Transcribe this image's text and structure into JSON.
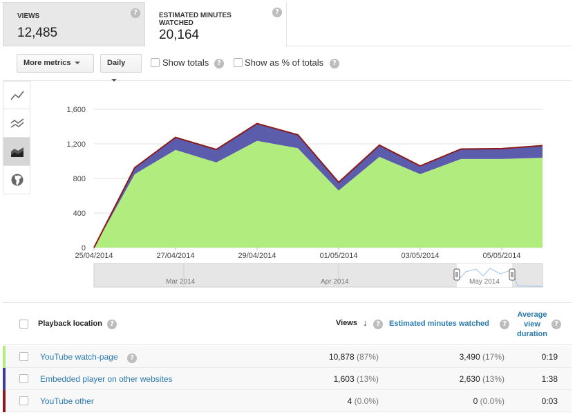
{
  "tiles": [
    {
      "label": "VIEWS",
      "value": "12,485"
    },
    {
      "label": "ESTIMATED MINUTES WATCHED",
      "value": "20,164"
    }
  ],
  "help_glyph": "?",
  "toolbar": {
    "more_metrics": "More metrics",
    "interval": "Daily",
    "show_totals": "Show totals",
    "show_pct": "Show as % of totals"
  },
  "sidebar": {
    "items": [
      {
        "icon": "line-chart-icon",
        "active": false
      },
      {
        "icon": "multi-line-chart-icon",
        "active": false
      },
      {
        "icon": "stacked-area-chart-icon",
        "active": true
      },
      {
        "icon": "globe-icon",
        "active": false
      }
    ]
  },
  "chart_data": {
    "type": "area",
    "stacked": true,
    "x": [
      "25/04/2014",
      "26/04/2014",
      "27/04/2014",
      "28/04/2014",
      "29/04/2014",
      "30/04/2014",
      "01/05/2014",
      "02/05/2014",
      "03/05/2014",
      "04/05/2014",
      "05/05/2014",
      "06/05/2014"
    ],
    "x_tick_labels": [
      "25/04/2014",
      "27/04/2014",
      "29/04/2014",
      "01/05/2014",
      "03/05/2014",
      "05/05/2014"
    ],
    "y_ticks": [
      "0",
      "400",
      "800",
      "1,200",
      "1,600"
    ],
    "ylim": [
      0,
      1600
    ],
    "series": [
      {
        "name": "YouTube watch-page",
        "color": "#b0ed7e",
        "values": [
          0,
          850,
          1130,
          985,
          1235,
          1150,
          660,
          1050,
          850,
          1025,
          1025,
          1040
        ]
      },
      {
        "name": "Embedded player on other websites",
        "color": "#5c5cad",
        "values": [
          0,
          75,
          145,
          150,
          200,
          155,
          95,
          135,
          95,
          115,
          120,
          140
        ]
      },
      {
        "name": "YouTube other",
        "color": "#8b1a1a",
        "values": [
          0,
          0,
          0,
          0,
          0,
          0,
          0,
          0,
          0,
          0,
          0,
          0
        ]
      }
    ],
    "navigator_labels": [
      "Mar 2014",
      "Apr 2014",
      "May 2014"
    ]
  },
  "table": {
    "col_location": "Playback location",
    "col_views": "Views",
    "col_minutes": "Estimated minutes watched",
    "col_avg": "Average view duration",
    "rows": [
      {
        "name": "YouTube watch-page",
        "views": "10,878",
        "views_pct": "(87%)",
        "minutes": "3,490",
        "minutes_pct": "(17%)",
        "avg": "0:19",
        "color": "#b0ed7e",
        "has_help": true
      },
      {
        "name": "Embedded player on other websites",
        "views": "1,603",
        "views_pct": "(13%)",
        "minutes": "2,630",
        "minutes_pct": "(13%)",
        "avg": "1:38",
        "color": "#3d3d9e",
        "has_help": false
      },
      {
        "name": "YouTube other",
        "views": "4",
        "views_pct": "(0.0%)",
        "minutes": "0",
        "minutes_pct": "(0.0%)",
        "avg": "0:03",
        "color": "#8b1a1a",
        "has_help": false
      }
    ]
  }
}
